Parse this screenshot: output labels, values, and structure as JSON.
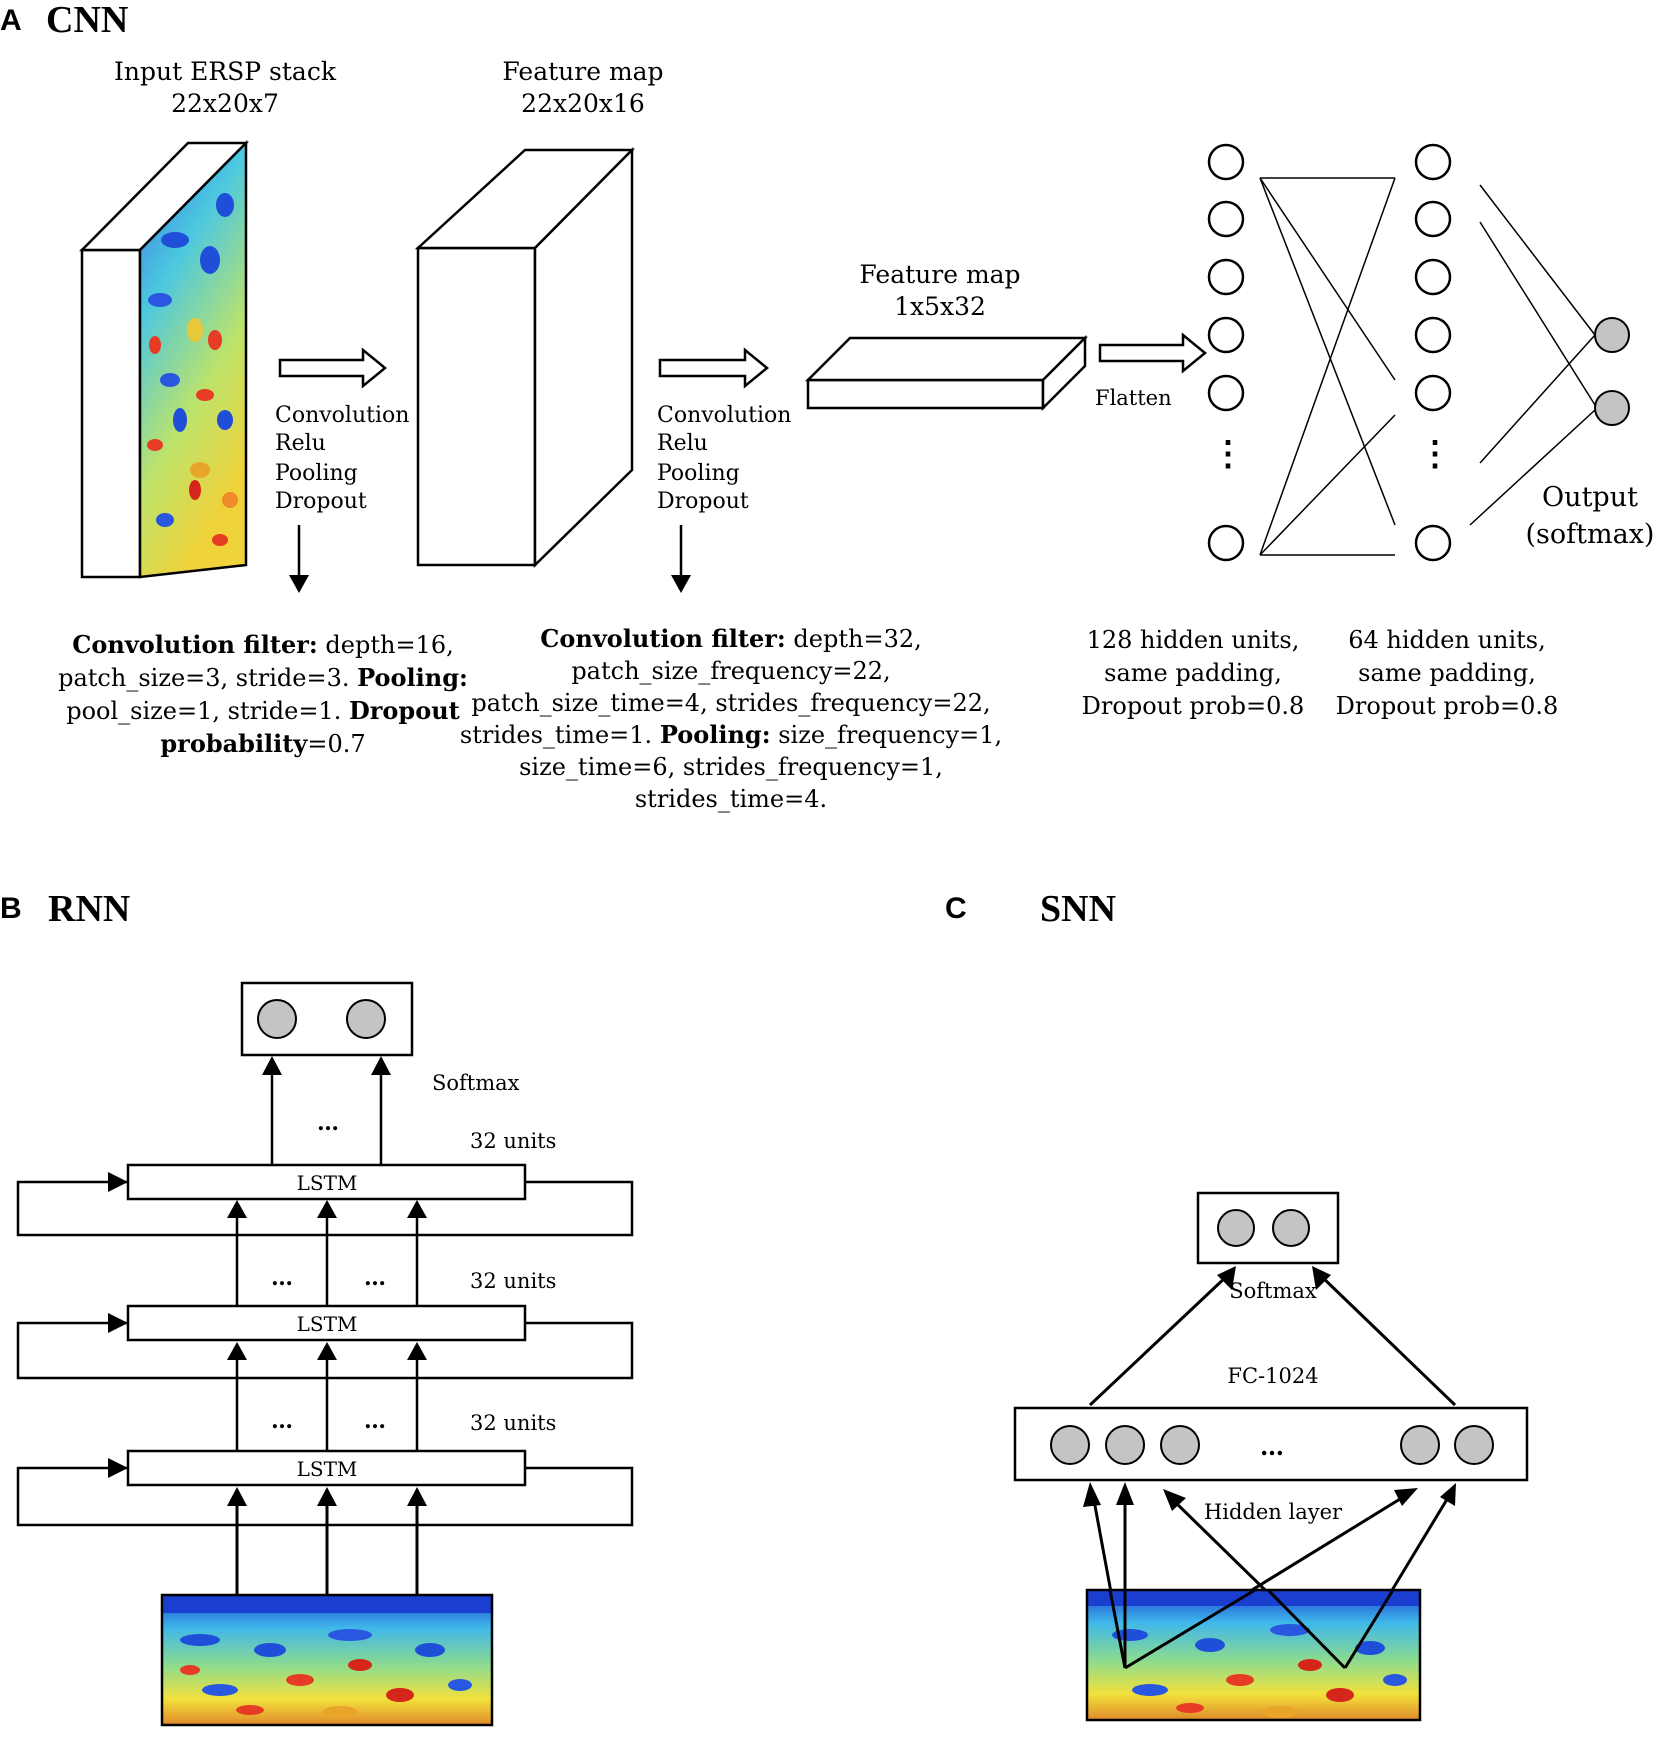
{
  "panels": {
    "a": {
      "letter": "A",
      "title": "CNN"
    },
    "b": {
      "letter": "B",
      "title": "RNN"
    },
    "c": {
      "letter": "C",
      "title": "SNN"
    }
  },
  "cnn": {
    "input": {
      "line1": "Input ERSP stack",
      "line2": "22x20x7"
    },
    "feature_map_1": {
      "line1": "Feature map",
      "line2": "22x20x16"
    },
    "feature_map_2": {
      "line1": "Feature map",
      "line2": "1x5x32"
    },
    "ops_1": [
      "Convolution",
      "Relu",
      "Pooling",
      "Dropout"
    ],
    "ops_2": [
      "Convolution",
      "Relu",
      "Pooling",
      "Dropout"
    ],
    "flatten": "Flatten",
    "output": {
      "line1": "Output",
      "line2": "(softmax)"
    },
    "ellipsis": "⋮",
    "desc_1": [
      [
        {
          "t": "Convolution filter:",
          "b": true
        },
        {
          "t": " depth=16,",
          "b": false
        }
      ],
      [
        {
          "t": "patch_size=3, stride=3. ",
          "b": false
        },
        {
          "t": "Pooling:",
          "b": true
        }
      ],
      [
        {
          "t": "pool_size=1, stride=1. ",
          "b": false
        },
        {
          "t": "Dropout",
          "b": true
        }
      ],
      [
        {
          "t": "probability",
          "b": true
        },
        {
          "t": "=0.7",
          "b": false
        }
      ]
    ],
    "desc_2": [
      [
        {
          "t": "Convolution filter:",
          "b": true
        },
        {
          "t": " depth=32,",
          "b": false
        }
      ],
      [
        {
          "t": "patch_size_frequency=22,",
          "b": false
        }
      ],
      [
        {
          "t": "patch_size_time=4, strides_frequency=22,",
          "b": false
        }
      ],
      [
        {
          "t": "strides_time=1. ",
          "b": false
        },
        {
          "t": "Pooling:",
          "b": true
        },
        {
          "t": " size_frequency=1,",
          "b": false
        }
      ],
      [
        {
          "t": "size_time=6, strides_frequency=1,",
          "b": false
        }
      ],
      [
        {
          "t": "strides_time=4.",
          "b": false
        }
      ]
    ],
    "hidden_1": [
      "128 hidden units,",
      "same padding,",
      "Dropout prob=0.8"
    ],
    "hidden_2": [
      "64 hidden units,",
      "same padding,",
      "Dropout prob=0.8"
    ]
  },
  "rnn": {
    "softmax": "Softmax",
    "lstm_label": "LSTM",
    "units_label": "32 units",
    "dots": "…"
  },
  "snn": {
    "softmax": "Softmax",
    "fc": "FC-1024",
    "hidden_layer": "Hidden layer",
    "dots": "…"
  },
  "colors": {
    "node_fill": "#c4c4c4",
    "heatmap_blue": "#1f4fd8",
    "heatmap_cyan": "#39c6e6",
    "heatmap_yellow": "#f2e23a",
    "heatmap_red": "#d6251b"
  }
}
